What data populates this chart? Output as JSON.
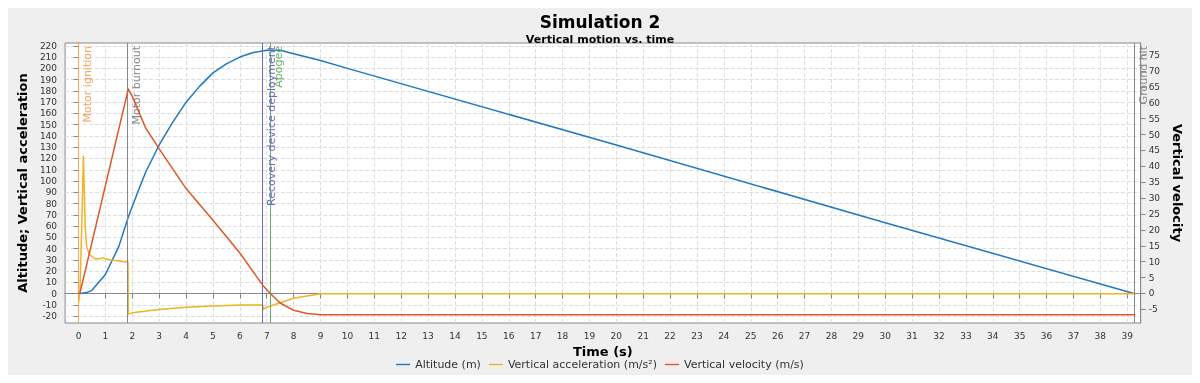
{
  "chart_data": {
    "type": "line",
    "title": "Simulation 2",
    "subtitle": "Vertical motion vs. time",
    "xlabel": "Time (s)",
    "ylabel": "Altitude; Vertical acceleration",
    "y2label": "Vertical velocity",
    "xlim": [
      -0.5,
      39.5
    ],
    "xticks": [
      0,
      1,
      2,
      3,
      4,
      5,
      6,
      7,
      8,
      9,
      10,
      11,
      12,
      13,
      14,
      15,
      16,
      17,
      18,
      19,
      20,
      21,
      22,
      23,
      24,
      25,
      26,
      27,
      28,
      29,
      30,
      31,
      32,
      33,
      34,
      35,
      36,
      37,
      38,
      39
    ],
    "ylim": [
      -26,
      222.5
    ],
    "yticks": [
      -20,
      -10,
      0,
      10,
      20,
      30,
      40,
      50,
      60,
      70,
      80,
      90,
      100,
      110,
      120,
      130,
      140,
      150,
      160,
      170,
      180,
      190,
      200,
      210,
      220
    ],
    "y2lim": [
      -9.3,
      78.8
    ],
    "y2ticks": [
      -5,
      0,
      5,
      10,
      15,
      20,
      25,
      30,
      35,
      40,
      45,
      50,
      55,
      60,
      65,
      70,
      75
    ],
    "grid": true,
    "legend": "bottom",
    "marker": "none",
    "line_style": "solid",
    "series": [
      {
        "name": "Altitude (m)",
        "color": "#1f78c1",
        "x": [
          0,
          0.3,
          0.5,
          1,
          1.5,
          1.85,
          2.2,
          2.5,
          3,
          3.5,
          4,
          4.5,
          5,
          5.5,
          6,
          6.5,
          7,
          7.13,
          7.5,
          8,
          9,
          10,
          20,
          30,
          39.28
        ],
        "values": [
          0,
          1,
          3,
          17,
          42,
          68,
          90,
          108,
          132,
          152,
          170,
          184,
          196,
          204,
          210,
          214,
          216,
          216,
          216,
          213,
          207,
          200,
          132,
          63,
          0
        ]
      },
      {
        "name": "Vertical acceleration (m/s²)",
        "color": "#f0b323",
        "x": [
          0,
          0.05,
          0.12,
          0.18,
          0.25,
          0.3,
          0.4,
          0.6,
          0.8,
          0.9,
          1,
          1.2,
          1.5,
          1.84,
          1.85,
          2,
          3,
          4,
          5,
          6,
          6.85,
          6.87,
          7,
          7.5,
          8,
          8.5,
          9,
          9.5,
          39.28
        ],
        "values": [
          -8,
          0,
          60,
          122,
          60,
          42,
          35,
          31,
          31,
          32,
          31,
          30,
          29,
          28,
          -18,
          -17,
          -14,
          -12,
          -11,
          -10,
          -10,
          -14,
          -12,
          -8,
          -4,
          -2,
          0,
          0,
          0
        ]
      },
      {
        "name": "Vertical velocity (m/s)",
        "color": "#e0552a",
        "axis": "y2",
        "x": [
          0,
          0.05,
          1.85,
          2,
          2.5,
          3,
          4,
          5,
          6,
          6.85,
          7.13,
          7.5,
          8,
          8.5,
          9,
          39.28
        ],
        "values": [
          0,
          0,
          64.3,
          62,
          52,
          45.5,
          33,
          23,
          12.7,
          2.6,
          0,
          -3,
          -5.3,
          -6.3,
          -6.7,
          -6.7
        ]
      }
    ],
    "ref_lines": [
      {
        "axis": "x",
        "value": 0,
        "label": "Motor ignition",
        "color": "#f5a65b"
      },
      {
        "axis": "x",
        "value": 1.83,
        "label": "Motor burnout",
        "color": "#888888"
      },
      {
        "axis": "x",
        "value": 6.85,
        "label": "Recovery device deployment",
        "color": "#6a6ac0"
      },
      {
        "axis": "x",
        "value": 7.13,
        "label": "Apogee",
        "color": "#6ab06a"
      },
      {
        "axis": "x",
        "value": 39.28,
        "label": "Ground hit",
        "color": "#888888"
      }
    ]
  }
}
